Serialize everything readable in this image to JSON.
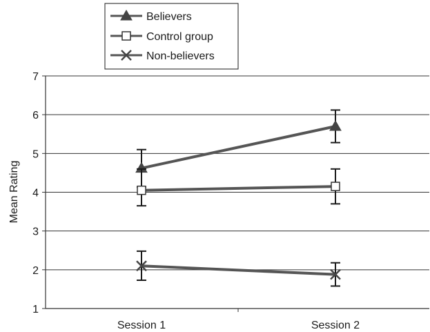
{
  "chart_data": {
    "type": "line",
    "title": "",
    "xlabel": "",
    "ylabel": "Mean Rating",
    "categories": [
      "Session 1",
      "Session 2"
    ],
    "ylim": [
      1,
      7
    ],
    "yticks": [
      1,
      2,
      3,
      4,
      5,
      6,
      7
    ],
    "grid": "horizontal",
    "legend_position": "top-left",
    "series": [
      {
        "name": "Believers",
        "marker": "filled-triangle",
        "values": [
          4.62,
          5.7
        ],
        "error_low": [
          4.13,
          5.28
        ],
        "error_high": [
          5.1,
          6.12
        ]
      },
      {
        "name": "Control group",
        "marker": "open-square",
        "values": [
          4.05,
          4.15
        ],
        "error_low": [
          3.65,
          3.7
        ],
        "error_high": [
          4.6,
          4.6
        ]
      },
      {
        "name": "Non-believers",
        "marker": "x-cross",
        "values": [
          2.1,
          1.88
        ],
        "error_low": [
          1.73,
          1.58
        ],
        "error_high": [
          2.48,
          2.18
        ]
      }
    ],
    "colors": {
      "line": "#555555",
      "errorbar": "#1a1a1a",
      "axis": "#333333",
      "grid": "#333333"
    }
  }
}
